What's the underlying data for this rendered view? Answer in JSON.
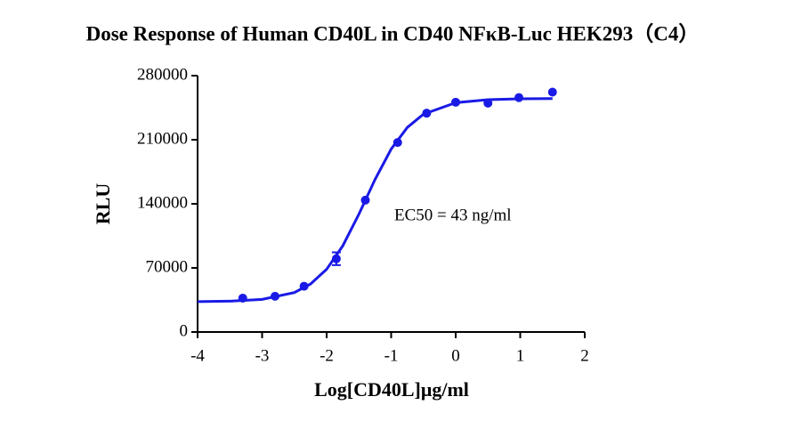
{
  "chart_data": {
    "type": "scatter",
    "title": "Dose Response of Human CD40L in CD40 NFκB-Luc HEK293（C4）",
    "x_label": "Log[CD40L]μg/ml",
    "y_label": "RLU",
    "annotation": "EC50 = 43 ng/ml",
    "xlim": [
      -4,
      2
    ],
    "xticks": [
      -4,
      -3,
      -2,
      -1,
      0,
      1,
      2
    ],
    "ylim": [
      0,
      280000
    ],
    "yticks": [
      0,
      70000,
      140000,
      210000,
      280000
    ],
    "color": "#1a1ae6",
    "series": [
      {
        "kind": "points",
        "x": [
          -3.3,
          -2.8,
          -2.35,
          -1.85,
          -1.4,
          -0.9,
          -0.45,
          0.0,
          0.5,
          0.98,
          1.5
        ],
        "values": [
          37000,
          39000,
          50000,
          80000,
          144000,
          207000,
          239000,
          251000,
          250000,
          256000,
          262000
        ],
        "errors": [
          null,
          null,
          null,
          7000,
          null,
          null,
          null,
          null,
          null,
          null,
          null
        ]
      },
      {
        "kind": "curve",
        "x": [
          -4,
          -3.5,
          -3,
          -2.5,
          -2.25,
          -2,
          -1.75,
          -1.5,
          -1.25,
          -1,
          -0.75,
          -0.5,
          0,
          0.5,
          1,
          1.5
        ],
        "values": [
          33200,
          33700,
          35600,
          43100,
          52400,
          68500,
          94100,
          128700,
          166600,
          199800,
          223400,
          237900,
          250500,
          253800,
          254700,
          255000
        ]
      }
    ]
  }
}
